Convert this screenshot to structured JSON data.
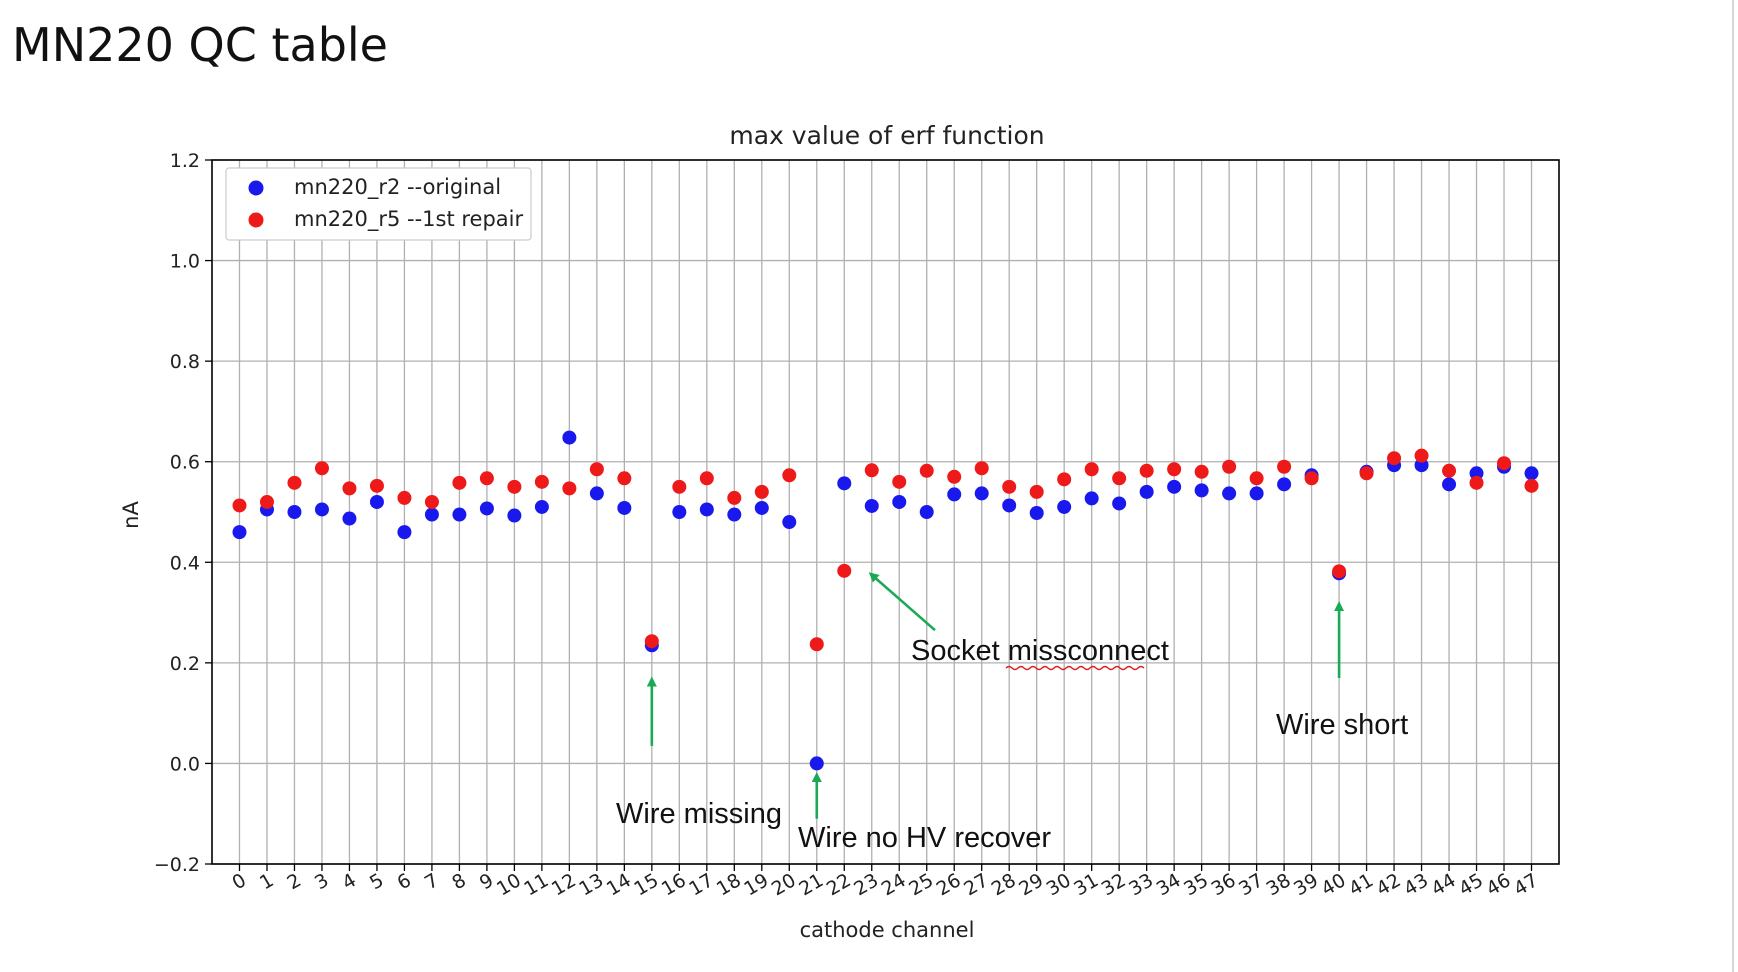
{
  "page": {
    "title": "MN220 QC table"
  },
  "chart_data": {
    "type": "scatter",
    "title": "max value of erf function",
    "xlabel": "cathode channel",
    "ylabel": "nA",
    "xlim": [
      -1,
      48
    ],
    "ylim": [
      -0.2,
      1.2
    ],
    "xticks": [
      0,
      1,
      2,
      3,
      4,
      5,
      6,
      7,
      8,
      9,
      10,
      11,
      12,
      13,
      14,
      15,
      16,
      17,
      18,
      19,
      20,
      21,
      22,
      23,
      24,
      25,
      26,
      27,
      28,
      29,
      30,
      31,
      32,
      33,
      34,
      35,
      36,
      37,
      38,
      39,
      40,
      41,
      42,
      43,
      44,
      45,
      46,
      47
    ],
    "yticks": [
      "−0.2",
      "0.0",
      "0.2",
      "0.4",
      "0.6",
      "0.8",
      "1.0",
      "1.2"
    ],
    "ytick_values": [
      -0.2,
      0.0,
      0.2,
      0.4,
      0.6,
      0.8,
      1.0,
      1.2
    ],
    "grid": true,
    "legend_position": "top-left",
    "series": [
      {
        "name": "mn220_r2 --original",
        "color": "#1919ee",
        "x": [
          0,
          1,
          2,
          3,
          4,
          5,
          6,
          7,
          8,
          9,
          10,
          11,
          12,
          13,
          14,
          15,
          16,
          17,
          18,
          19,
          20,
          21,
          22,
          23,
          24,
          25,
          26,
          27,
          28,
          29,
          30,
          31,
          32,
          33,
          34,
          35,
          36,
          37,
          38,
          39,
          40,
          41,
          42,
          43,
          44,
          45,
          46,
          47
        ],
        "y": [
          0.46,
          0.505,
          0.5,
          0.505,
          0.487,
          0.52,
          0.46,
          0.495,
          0.495,
          0.507,
          0.493,
          0.51,
          0.648,
          0.537,
          0.508,
          0.235,
          0.5,
          0.505,
          0.495,
          0.508,
          0.48,
          0.0,
          0.557,
          0.512,
          0.52,
          0.5,
          0.535,
          0.537,
          0.513,
          0.498,
          0.51,
          0.527,
          0.517,
          0.54,
          0.55,
          0.543,
          0.537,
          0.537,
          0.555,
          0.573,
          0.378,
          0.58,
          0.593,
          0.593,
          0.555,
          0.577,
          0.59,
          0.577
        ]
      },
      {
        "name": "mn220_r5 --1st repair",
        "color": "#ee1919",
        "x": [
          0,
          1,
          2,
          3,
          4,
          5,
          6,
          7,
          8,
          9,
          10,
          11,
          12,
          13,
          14,
          15,
          16,
          17,
          18,
          19,
          20,
          21,
          22,
          23,
          24,
          25,
          26,
          27,
          28,
          29,
          30,
          31,
          32,
          33,
          34,
          35,
          36,
          37,
          38,
          39,
          40,
          41,
          42,
          43,
          44,
          45,
          46,
          47
        ],
        "y": [
          0.513,
          0.52,
          0.558,
          0.587,
          0.547,
          0.552,
          0.528,
          0.52,
          0.558,
          0.567,
          0.55,
          0.56,
          0.547,
          0.585,
          0.567,
          0.243,
          0.55,
          0.567,
          0.528,
          0.54,
          0.573,
          0.237,
          0.383,
          0.583,
          0.56,
          0.582,
          0.57,
          0.587,
          0.55,
          0.54,
          0.565,
          0.585,
          0.567,
          0.582,
          0.585,
          0.58,
          0.59,
          0.567,
          0.59,
          0.567,
          0.382,
          0.577,
          0.607,
          0.612,
          0.582,
          0.558,
          0.597,
          0.552
        ]
      }
    ],
    "annotations": [
      {
        "text": "Wire missing",
        "x": 15,
        "arrow_from_y": 0.035,
        "arrow_to_y": 0.165
      },
      {
        "text": "Wire no HV recover",
        "x": 21,
        "arrow_from_y": -0.11,
        "arrow_to_y": -0.025
      },
      {
        "text": "Socket missconnect",
        "arrow_from_x": 25.3,
        "arrow_from_y": 0.265,
        "arrow_to_x": 23.0,
        "arrow_to_y": 0.375
      },
      {
        "text": "Wire short",
        "x": 40,
        "arrow_from_y": 0.17,
        "arrow_to_y": 0.315
      }
    ]
  }
}
